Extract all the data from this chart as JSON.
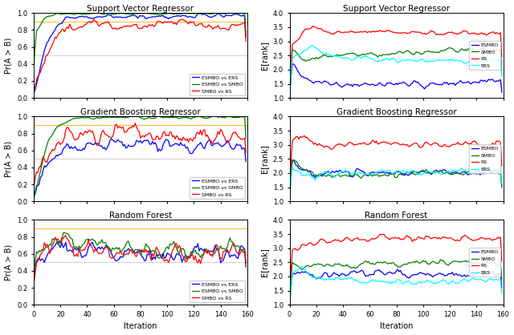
{
  "titles_left": [
    "Support Vector Regressor",
    "Gradient Boosting Regressor",
    "Random Forest"
  ],
  "titles_right": [
    "Support Vector Regressor",
    "Gradient Boosting Regressor",
    "Random Forest"
  ],
  "ylabel_left": "Pr(A ≻ B)",
  "ylabel_right": "E[rank]",
  "xlabel": "Iteration",
  "legend_left": [
    "ESMBO vs ERS",
    "ESMBO vs SMBO",
    "SMBO vs RS"
  ],
  "legend_right": [
    "ESMBO",
    "SMBO",
    "RS",
    "ERS"
  ],
  "colors_left": [
    "blue",
    "green",
    "red"
  ],
  "colors_right": [
    "blue",
    "green",
    "red",
    "cyan"
  ],
  "xlim": [
    0,
    160
  ],
  "ylim_left": [
    0.0,
    1.0
  ],
  "ylim_right": [
    1.0,
    4.0
  ],
  "yticks_left": [
    0.0,
    0.2,
    0.4,
    0.6,
    0.8,
    1.0
  ],
  "yticks_right": [
    1.0,
    1.5,
    2.0,
    2.5,
    3.0,
    3.5,
    4.0
  ],
  "xticks": [
    0,
    20,
    40,
    60,
    80,
    100,
    120,
    140,
    160
  ],
  "n_iter": 160,
  "hline_gray": 0.5,
  "hline_orange": 0.9
}
